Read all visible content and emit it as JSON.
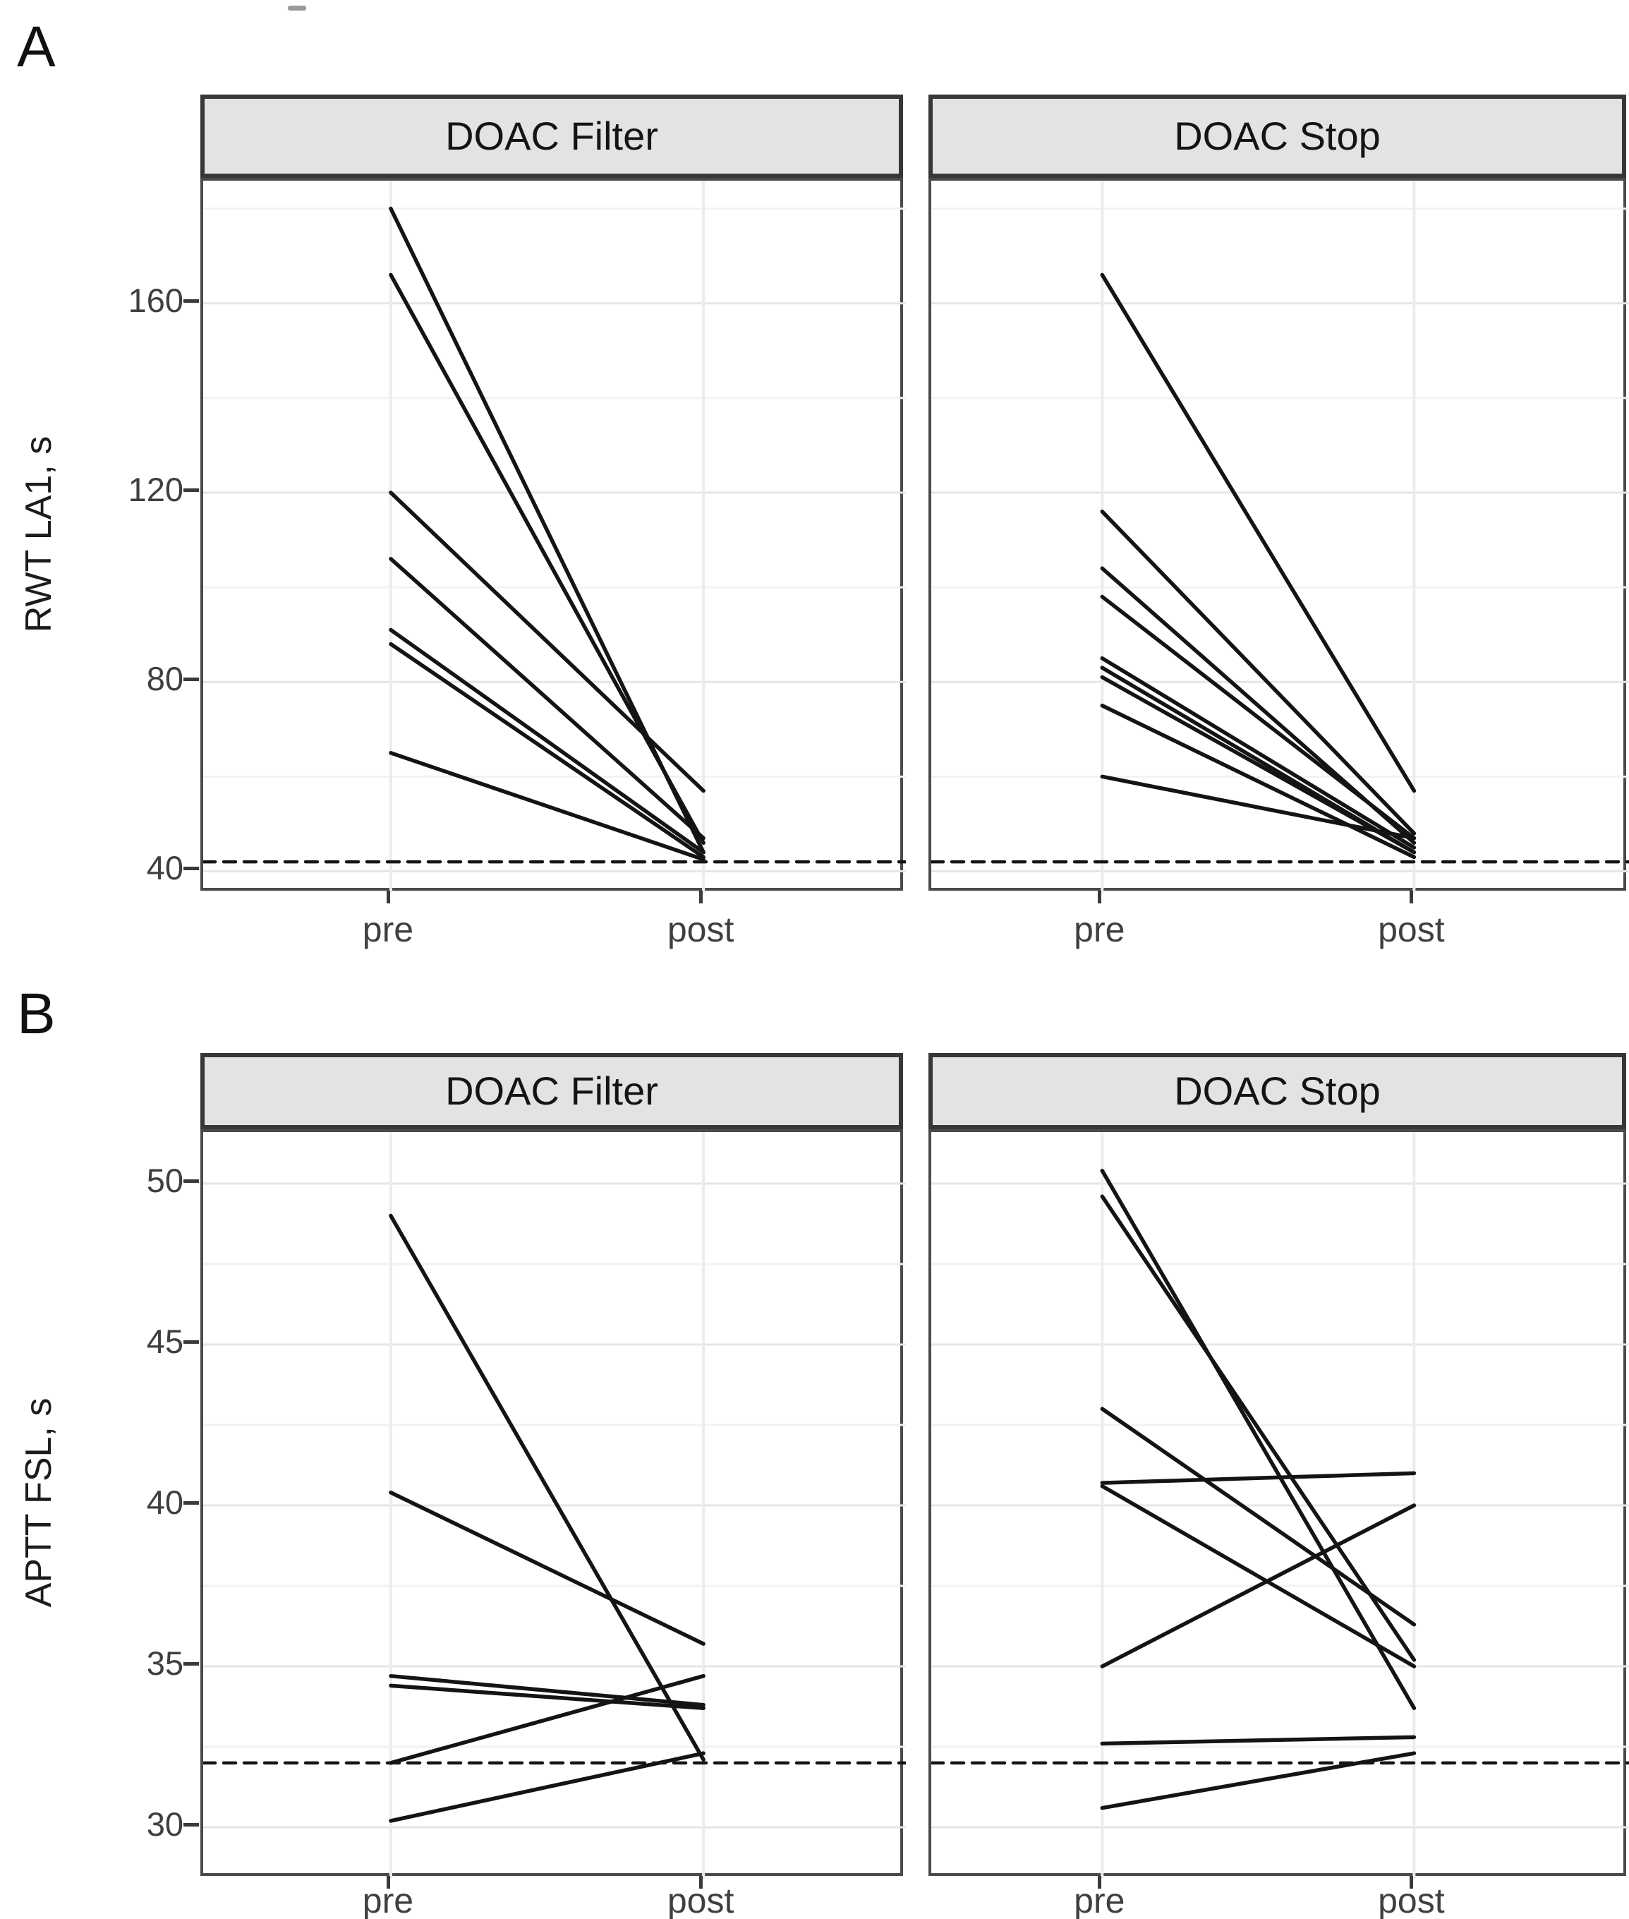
{
  "figure_background": "#ffffff",
  "line_color": "#141414",
  "strip_background": "#e3e3e3",
  "chart_data": [
    {
      "panel_tag": "A",
      "type": "line",
      "subtype": "paired-slope",
      "ylabel": "RWT LA1, s",
      "x_categories": [
        "pre",
        "post"
      ],
      "yticks": [
        40,
        80,
        120,
        160
      ],
      "minor_gridlines": [
        60,
        100,
        140,
        180
      ],
      "ylim": [
        35.3,
        185.9
      ],
      "reference_line": 42,
      "grid": "on",
      "facets": [
        {
          "label": "DOAC Filter",
          "series": [
            {
              "pre": 180,
              "post": 44
            },
            {
              "pre": 166,
              "post": 46
            },
            {
              "pre": 120,
              "post": 57
            },
            {
              "pre": 106,
              "post": 47
            },
            {
              "pre": 91,
              "post": 44
            },
            {
              "pre": 88,
              "post": 43
            },
            {
              "pre": 65,
              "post": 42.5
            }
          ]
        },
        {
          "label": "DOAC Stop",
          "series": [
            {
              "pre": 166,
              "post": 57
            },
            {
              "pre": 116,
              "post": 48
            },
            {
              "pre": 104,
              "post": 46
            },
            {
              "pre": 98,
              "post": 47
            },
            {
              "pre": 85,
              "post": 45
            },
            {
              "pre": 83,
              "post": 44
            },
            {
              "pre": 81,
              "post": 44
            },
            {
              "pre": 75,
              "post": 43
            },
            {
              "pre": 60,
              "post": 47
            }
          ]
        }
      ]
    },
    {
      "panel_tag": "B",
      "type": "line",
      "subtype": "paired-slope",
      "ylabel": "APTT FSL, s",
      "x_categories": [
        "pre",
        "post"
      ],
      "yticks": [
        30,
        35,
        40,
        45,
        50
      ],
      "minor_gridlines": [
        32.5,
        37.5,
        42.5,
        47.5
      ],
      "ylim": [
        28.4,
        51.6
      ],
      "reference_line": 32,
      "grid": "on",
      "facets": [
        {
          "label": "DOAC Filter",
          "series": [
            {
              "pre": 49,
              "post": 32.1
            },
            {
              "pre": 40.4,
              "post": 35.7
            },
            {
              "pre": 34.7,
              "post": 33.8
            },
            {
              "pre": 34.4,
              "post": 33.7
            },
            {
              "pre": 32,
              "post": 34.7
            },
            {
              "pre": 30.2,
              "post": 32.3
            }
          ]
        },
        {
          "label": "DOAC Stop",
          "series": [
            {
              "pre": 50.4,
              "post": 33.7
            },
            {
              "pre": 49.6,
              "post": 35.2
            },
            {
              "pre": 43,
              "post": 36.3
            },
            {
              "pre": 40.7,
              "post": 41
            },
            {
              "pre": 40.6,
              "post": 35
            },
            {
              "pre": 35,
              "post": 40
            },
            {
              "pre": 32.6,
              "post": 32.8
            },
            {
              "pre": 30.6,
              "post": 32.3
            }
          ]
        }
      ]
    }
  ]
}
